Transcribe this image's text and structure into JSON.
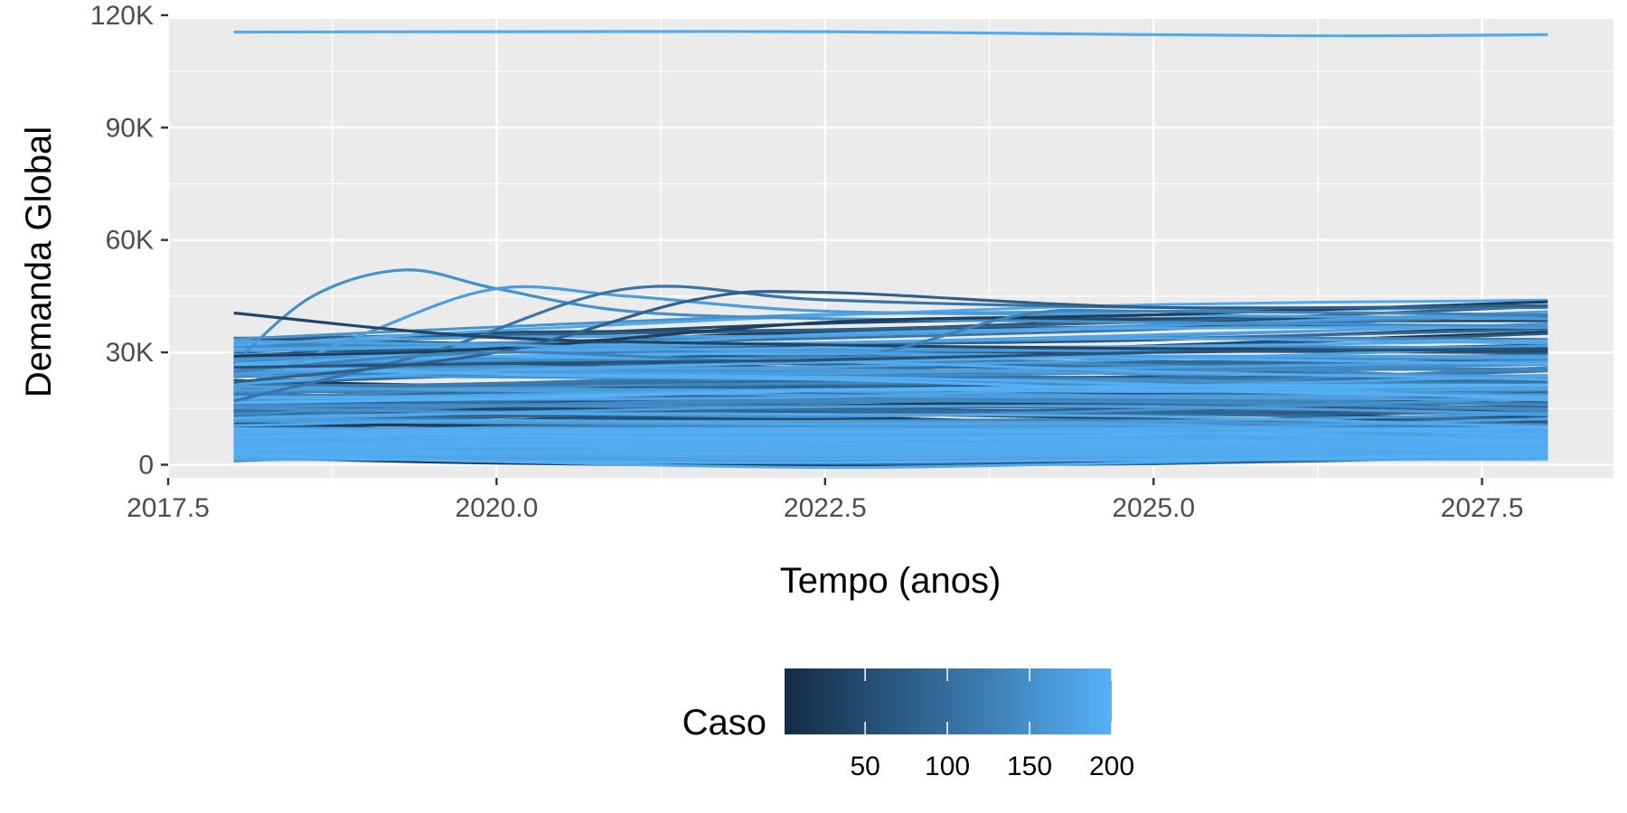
{
  "chart_data": {
    "type": "line",
    "title": "",
    "xlabel": "Tempo (anos)",
    "ylabel": "Demanda Global",
    "xlim": [
      2017.5,
      2028.5
    ],
    "ylim": [
      -3500,
      119000
    ],
    "x_ticks": [
      2017.5,
      2020.0,
      2022.5,
      2025.0,
      2027.5
    ],
    "x_tick_labels": [
      "2017.5",
      "2020.0",
      "2022.5",
      "2025.0",
      "2027.5"
    ],
    "y_ticks": [
      0,
      30000,
      60000,
      90000,
      120000
    ],
    "y_tick_labels": [
      "0",
      "30K",
      "60K",
      "90K",
      "120K"
    ],
    "grid": true,
    "legend": {
      "title": "Caso",
      "type": "colorbar",
      "placement": "bottom",
      "range": [
        1,
        200
      ],
      "ticks": [
        50,
        100,
        150,
        200
      ],
      "tick_labels": [
        "50",
        "100",
        "150",
        "200"
      ],
      "low_color": "#132B43",
      "high_color": "#56B1F7"
    },
    "panel_color": "#EBEBEB",
    "grid_color": "#FFFFFF",
    "x_domain": [
      2018,
      2028
    ],
    "series_note_count": 200,
    "highlighted_series": [
      {
        "caso": 190,
        "x": [
          2018,
          2020,
          2022.5,
          2025,
          2026.5,
          2028
        ],
        "y": [
          115500,
          115600,
          115600,
          114800,
          114500,
          114800
        ]
      },
      {
        "caso": 150,
        "x": [
          2018,
          2018.6,
          2019.3,
          2020,
          2021,
          2022.5,
          2025,
          2028
        ],
        "y": [
          27000,
          45000,
          52000,
          47000,
          41000,
          39000,
          38000,
          37000
        ]
      },
      {
        "caso": 170,
        "x": [
          2018,
          2019,
          2020,
          2021,
          2022.5,
          2025,
          2028
        ],
        "y": [
          20000,
          35000,
          47000,
          45000,
          41000,
          40000,
          39000
        ]
      },
      {
        "caso": 110,
        "x": [
          2018,
          2019.5,
          2021,
          2022.5,
          2025,
          2028
        ],
        "y": [
          17000,
          30000,
          47000,
          44000,
          42000,
          42000
        ]
      },
      {
        "caso": 40,
        "x": [
          2018,
          2020,
          2022.5,
          2025,
          2028
        ],
        "y": [
          40500,
          34000,
          32000,
          31000,
          30500
        ]
      },
      {
        "caso": 30,
        "x": [
          2018,
          2020,
          2022.5,
          2025,
          2028
        ],
        "y": [
          29000,
          31000,
          38000,
          40000,
          43500
        ]
      },
      {
        "caso": 80,
        "x": [
          2018,
          2020,
          2021.5,
          2022.5,
          2025,
          2028
        ],
        "y": [
          22000,
          30000,
          44000,
          46000,
          42000,
          42500
        ]
      },
      {
        "caso": 130,
        "x": [
          2018,
          2020,
          2022.5,
          2024,
          2025,
          2028
        ],
        "y": [
          25000,
          30000,
          28000,
          40000,
          41000,
          40000
        ]
      },
      {
        "caso": 175,
        "x": [
          2018,
          2020,
          2022.5,
          2025,
          2028
        ],
        "y": [
          33000,
          32000,
          30000,
          29000,
          29000
        ]
      },
      {
        "caso": 60,
        "x": [
          2018,
          2020,
          2022.5,
          2025,
          2028
        ],
        "y": [
          26000,
          27000,
          28000,
          30000,
          31000
        ]
      }
    ]
  }
}
